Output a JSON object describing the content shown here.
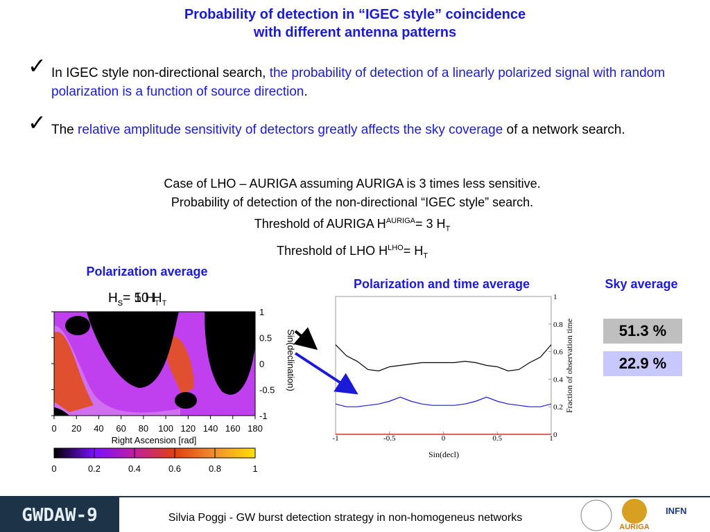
{
  "title": [
    "Probability of detection in “IGEC style” coincidence",
    "with different antenna patterns"
  ],
  "bullets": [
    {
      "segments": [
        {
          "text": "In IGEC style non-directional search, ",
          "color": "#000000"
        },
        {
          "text": "the probability of detection of a linearly polarized signal with random polarization is a function of source direction",
          "color": "#1a1ad8"
        },
        {
          "text": ".",
          "color": "#000000"
        }
      ]
    },
    {
      "segments": [
        {
          "text": "The ",
          "color": "#000000"
        },
        {
          "text": "relative amplitude sensitivity of detectors greatly affects the sky coverage",
          "color": "#1a1ad8"
        },
        {
          "text": " of a network search.",
          "color": "#000000"
        }
      ]
    }
  ],
  "case": {
    "line1": "Case of LHO – AURIGA assuming AURIGA is 3 times less sensitive.",
    "line2": "Probability of detection of the non-directional “IGEC style” search.",
    "line3": [
      "Threshold of AURIGA H",
      "AURIGA",
      "= 3 H",
      "T"
    ],
    "line4": [
      "Threshold of LHO H",
      "LHO",
      "= H",
      "T"
    ]
  },
  "left_panel": {
    "heading": "Polarization average",
    "label_a": [
      "H",
      "S",
      "= 10 H",
      "T"
    ],
    "label_b": [
      "H",
      "S",
      "= 5 H",
      "T"
    ],
    "xlabel": "Right Ascension [rad]",
    "ylabel": "Sin(declination)",
    "xlim": [
      0,
      180
    ],
    "xticks": [
      0,
      20,
      40,
      60,
      80,
      100,
      120,
      140,
      160,
      180
    ],
    "ylim": [
      -1,
      1
    ],
    "yticks": [
      1,
      0.5,
      0,
      -0.5,
      -1
    ],
    "colorbar_lim": [
      0,
      1
    ],
    "colorbar_ticks": [
      0,
      0.2,
      0.4,
      0.6,
      0.8,
      1
    ]
  },
  "chart_data": {
    "type": "line",
    "title": "Polarization and time average",
    "xlabel": "Sin(decl)",
    "ylabel": "Fraction of observation time",
    "x": [
      -1,
      -0.9,
      -0.8,
      -0.7,
      -0.6,
      -0.5,
      -0.4,
      -0.3,
      -0.2,
      -0.1,
      0,
      0.1,
      0.2,
      0.3,
      0.4,
      0.5,
      0.6,
      0.7,
      0.8,
      0.9,
      1
    ],
    "series": [
      {
        "color": "#000000",
        "values": [
          0.65,
          0.57,
          0.53,
          0.47,
          0.46,
          0.49,
          0.5,
          0.51,
          0.52,
          0.52,
          0.52,
          0.52,
          0.53,
          0.52,
          0.5,
          0.49,
          0.46,
          0.47,
          0.52,
          0.56,
          0.65
        ]
      },
      {
        "color": "#1a1ad8",
        "values": [
          0.22,
          0.2,
          0.2,
          0.21,
          0.22,
          0.24,
          0.27,
          0.24,
          0.22,
          0.21,
          0.21,
          0.21,
          0.22,
          0.24,
          0.27,
          0.24,
          0.22,
          0.21,
          0.2,
          0.2,
          0.22
        ]
      },
      {
        "color": "#cc0000",
        "values": [
          0,
          0,
          0,
          0,
          0,
          0,
          0,
          0,
          0,
          0,
          0,
          0,
          0,
          0,
          0,
          0,
          0,
          0,
          0,
          0,
          0
        ]
      }
    ],
    "xlim": [
      -1,
      1
    ],
    "xticks": [
      -1,
      -0.5,
      0,
      0.5,
      1
    ],
    "ylim": [
      0,
      1
    ],
    "yticks": [
      0,
      0.2,
      0.4,
      0.6,
      0.8,
      1
    ]
  },
  "sky": {
    "heading": "Sky average",
    "values": [
      "51.3 %",
      "22.9 %"
    ]
  },
  "footer": {
    "logo": "GWDAW-9",
    "text": "Silvia Poggi - GW burst detection strategy in non-homogeneus networks",
    "auriga": "AURIGA",
    "infn": "INFN"
  }
}
